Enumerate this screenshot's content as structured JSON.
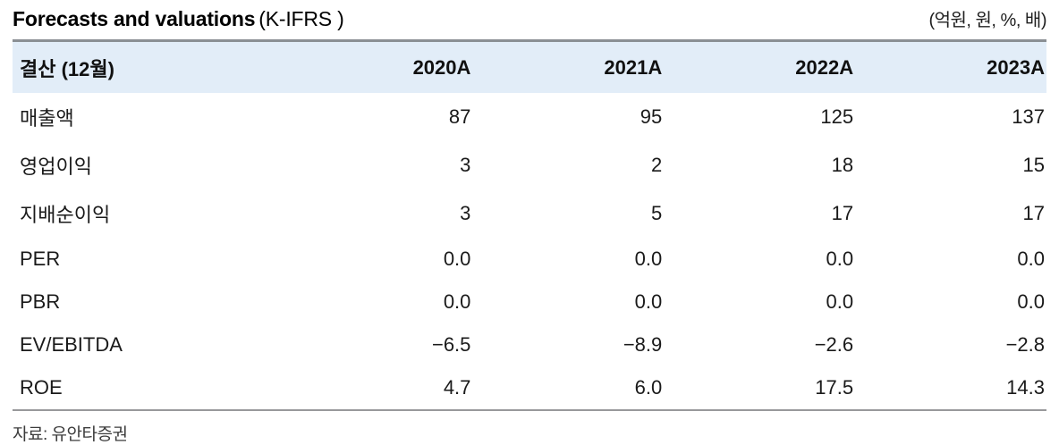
{
  "title": {
    "main": "Forecasts and valuations",
    "suffix": "(K-IFRS )",
    "units": "(억원, 원, %, 배)"
  },
  "table": {
    "header": {
      "label": "결산 (12월)",
      "years": [
        "2020A",
        "2021A",
        "2022A",
        "2023A"
      ]
    },
    "rows": [
      {
        "label": "매출액",
        "values": [
          "87",
          "95",
          "125",
          "137"
        ]
      },
      {
        "label": "영업이익",
        "values": [
          "3",
          "2",
          "18",
          "15"
        ]
      },
      {
        "label": "지배순이익",
        "values": [
          "3",
          "5",
          "17",
          "17"
        ]
      },
      {
        "label": "PER",
        "values": [
          "0.0",
          "0.0",
          "0.0",
          "0.0"
        ]
      },
      {
        "label": "PBR",
        "values": [
          "0.0",
          "0.0",
          "0.0",
          "0.0"
        ]
      },
      {
        "label": "EV/EBITDA",
        "values": [
          "−6.5",
          "−8.9",
          "−2.6",
          "−2.8"
        ]
      },
      {
        "label": "ROE",
        "values": [
          "4.7",
          "6.0",
          "17.5",
          "14.3"
        ]
      }
    ]
  },
  "footer": {
    "source": "자료: 유안타증권"
  },
  "colors": {
    "header_bg": "#e2edf8",
    "top_border": "#8a8f94",
    "bottom_border": "#98999b",
    "text": "#1a1a1a",
    "footer_text": "#3c3c3c"
  },
  "chart_data": {
    "type": "table",
    "title": "Forecasts and valuations (K-IFRS )",
    "units_note": "(억원, 원, %, 배)",
    "columns": [
      "결산 (12월)",
      "2020A",
      "2021A",
      "2022A",
      "2023A"
    ],
    "rows": [
      [
        "매출액",
        87,
        95,
        125,
        137
      ],
      [
        "영업이익",
        3,
        2,
        18,
        15
      ],
      [
        "지배순이익",
        3,
        5,
        17,
        17
      ],
      [
        "PER",
        0.0,
        0.0,
        0.0,
        0.0
      ],
      [
        "PBR",
        0.0,
        0.0,
        0.0,
        0.0
      ],
      [
        "EV/EBITDA",
        -6.5,
        -8.9,
        -2.6,
        -2.8
      ],
      [
        "ROE",
        4.7,
        6.0,
        17.5,
        14.3
      ]
    ],
    "source": "자료: 유안타증권",
    "layout": {
      "value_alignment": "right",
      "header_background": "#e2edf8",
      "row_separators": false
    }
  }
}
